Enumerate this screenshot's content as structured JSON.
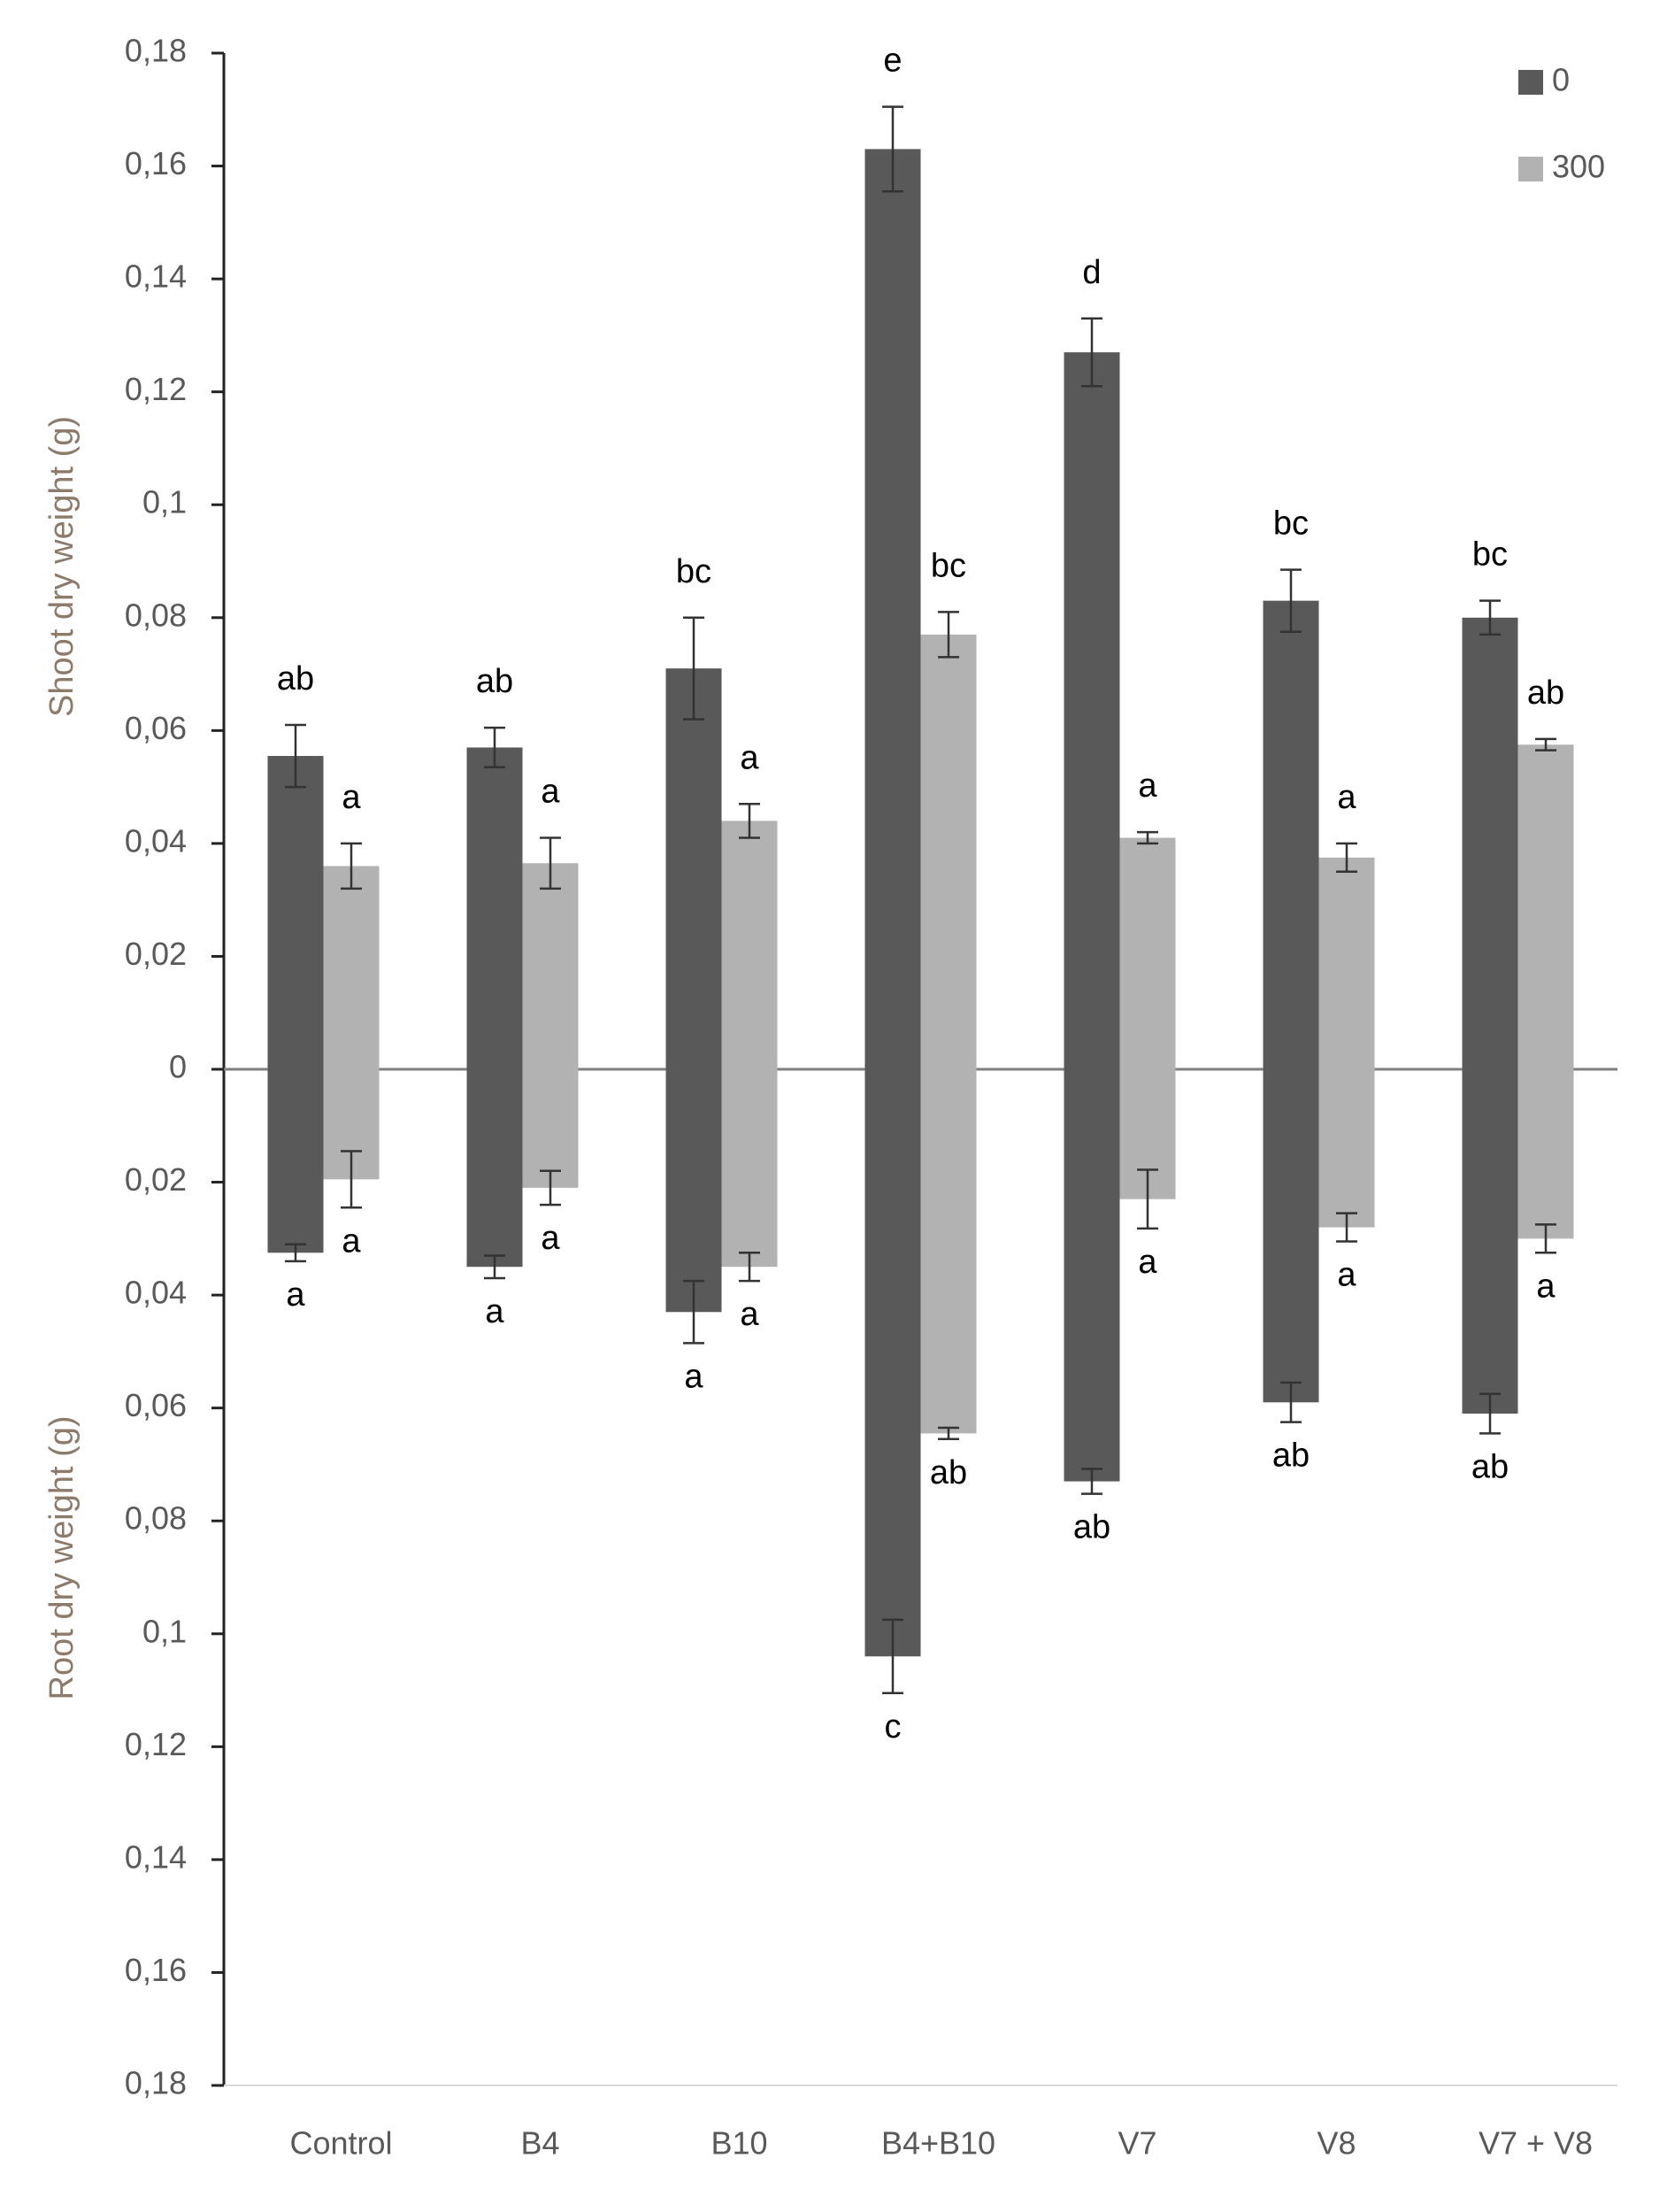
{
  "chart_data": {
    "type": "butterfly_bar",
    "y_label_top": "Shoot dry weight (g)",
    "y_label_bottom": "Root dry weight (g)",
    "categories": [
      "Control",
      "B4",
      "B10",
      "B4+B10",
      "V7",
      "V8",
      "V7 + V8"
    ],
    "series": [
      {
        "name": "0",
        "color": "#595959",
        "shoot": {
          "values": [
            0.0555,
            0.057,
            0.071,
            0.163,
            0.127,
            0.083,
            0.08
          ],
          "errors": [
            0.0055,
            0.0035,
            0.009,
            0.0075,
            0.006,
            0.0055,
            0.003
          ],
          "letters": [
            "ab",
            "ab",
            "bc",
            "e",
            "d",
            "bc",
            "bc"
          ]
        },
        "root": {
          "values": [
            -0.0325,
            -0.035,
            -0.043,
            -0.104,
            -0.073,
            -0.059,
            -0.061
          ],
          "errors": [
            0.0015,
            0.002,
            0.0055,
            0.0065,
            0.0022,
            0.0035,
            0.0035
          ],
          "letters": [
            "a",
            "a",
            "a",
            "c",
            "ab",
            "ab",
            "ab"
          ]
        }
      },
      {
        "name": "300",
        "color": "#b2b2b2",
        "shoot": {
          "values": [
            0.036,
            0.0365,
            0.044,
            0.077,
            0.041,
            0.0375,
            0.0575
          ],
          "errors": [
            0.004,
            0.0045,
            0.003,
            0.004,
            0.001,
            0.0025,
            0.001
          ],
          "letters": [
            "a",
            "a",
            "a",
            "bc",
            "a",
            "a",
            "ab"
          ]
        },
        "root": {
          "values": [
            -0.0195,
            -0.021,
            -0.035,
            -0.0645,
            -0.023,
            -0.028,
            -0.03
          ],
          "errors": [
            0.005,
            0.003,
            0.0025,
            0.001,
            0.0052,
            0.0025,
            0.0025
          ],
          "letters": [
            "a",
            "a",
            "a",
            "ab",
            "a",
            "a",
            "a"
          ]
        }
      }
    ],
    "ylim": [
      -0.18,
      0.18
    ],
    "yticks": [
      {
        "value": 0.18,
        "label": "0,18"
      },
      {
        "value": 0.16,
        "label": "0,16"
      },
      {
        "value": 0.14,
        "label": "0,14"
      },
      {
        "value": 0.12,
        "label": "0,12"
      },
      {
        "value": 0.1,
        "label": "0,1"
      },
      {
        "value": 0.08,
        "label": "0,08"
      },
      {
        "value": 0.06,
        "label": "0,06"
      },
      {
        "value": 0.04,
        "label": "0,04"
      },
      {
        "value": 0.02,
        "label": "0,02"
      },
      0,
      {
        "value": -0.02,
        "label": "0,02"
      },
      {
        "value": -0.04,
        "label": "0,04"
      },
      {
        "value": -0.06,
        "label": "0,06"
      },
      {
        "value": -0.08,
        "label": "0,08"
      },
      {
        "value": -0.1,
        "label": "0,1"
      },
      {
        "value": -0.12,
        "label": "0,12"
      },
      {
        "value": -0.14,
        "label": "0,14"
      },
      {
        "value": -0.16,
        "label": "0,16"
      },
      {
        "value": -0.18,
        "label": "0,18"
      }
    ],
    "legend": "top-right"
  }
}
